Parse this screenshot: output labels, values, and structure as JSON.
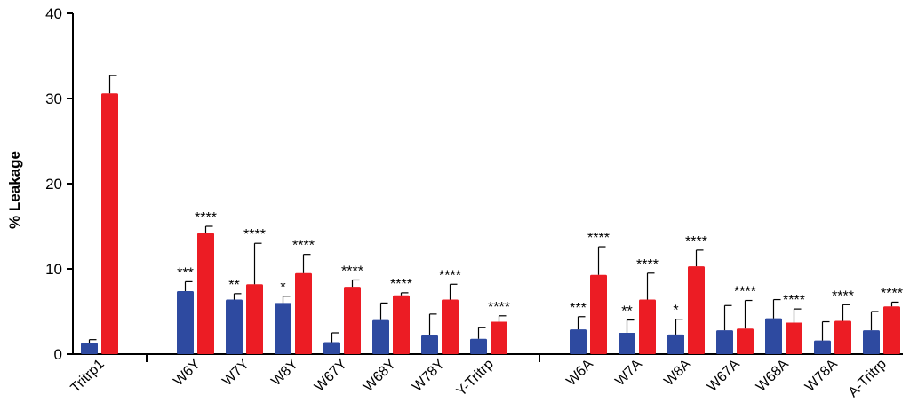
{
  "chart_data": {
    "type": "bar",
    "ylabel": "% Leakage",
    "ylim": [
      0,
      40
    ],
    "yticks": [
      0,
      10,
      20,
      30,
      40
    ],
    "grid": false,
    "colors": {
      "series1": "#2e4aa0",
      "series2": "#ec1c24",
      "axis": "#000000"
    },
    "groups": [
      {
        "categories": [
          "Tritrp1"
        ]
      },
      {
        "categories": [
          "W6Y",
          "W7Y",
          "W8Y",
          "W67Y",
          "W68Y",
          "W78Y",
          "Y-Tritrp"
        ]
      },
      {
        "categories": [
          "W6A",
          "W7A",
          "W8A",
          "W67A",
          "W68A",
          "W78A",
          "A-Tritrp"
        ]
      }
    ],
    "categories": [
      "Tritrp1",
      "W6Y",
      "W7Y",
      "W8Y",
      "W67Y",
      "W68Y",
      "W78Y",
      "Y-Tritrp",
      "W6A",
      "W7A",
      "W8A",
      "W67A",
      "W68A",
      "W78A",
      "A-Tritrp"
    ],
    "series": [
      {
        "color": "#2e4aa0",
        "values": [
          1.3,
          7.4,
          6.4,
          6.0,
          1.4,
          4.0,
          2.2,
          1.8,
          2.9,
          2.5,
          2.3,
          2.8,
          4.2,
          1.6,
          2.8
        ],
        "errors": [
          0.4,
          1.1,
          0.7,
          0.8,
          1.1,
          2.0,
          2.5,
          1.3,
          1.5,
          1.5,
          1.8,
          2.9,
          2.2,
          2.2,
          2.2
        ],
        "significance": [
          "",
          "***",
          "**",
          "*",
          "",
          "",
          "",
          "",
          "***",
          "**",
          "*",
          "",
          "",
          "",
          ""
        ]
      },
      {
        "color": "#ec1c24",
        "values": [
          30.6,
          14.2,
          8.2,
          9.5,
          7.9,
          6.9,
          6.4,
          3.8,
          9.3,
          6.4,
          10.3,
          3.0,
          3.7,
          3.9,
          5.6
        ],
        "errors": [
          2.1,
          0.8,
          4.8,
          2.2,
          0.8,
          0.3,
          1.8,
          0.7,
          3.3,
          3.1,
          1.9,
          3.3,
          1.6,
          1.9,
          0.5
        ],
        "significance": [
          "",
          "****",
          "****",
          "****",
          "****",
          "****",
          "****",
          "****",
          "****",
          "****",
          "****",
          "****",
          "****",
          "****",
          "****"
        ]
      }
    ]
  }
}
